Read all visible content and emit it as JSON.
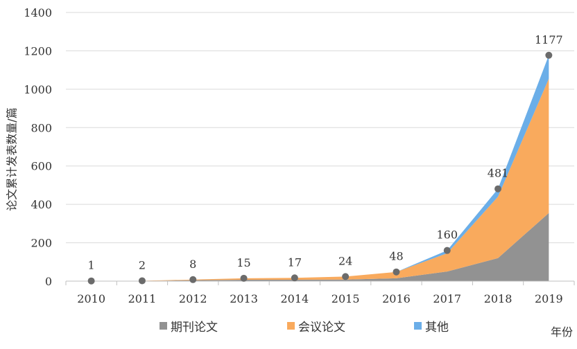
{
  "chart_data": {
    "type": "area",
    "stacked": true,
    "ylabel": "论文累计发表数量/篇",
    "xlabel": "年份",
    "categories": [
      "2010",
      "2011",
      "2012",
      "2013",
      "2014",
      "2015",
      "2016",
      "2017",
      "2018",
      "2019"
    ],
    "ylim": [
      0,
      1400
    ],
    "yticks": [
      0,
      200,
      400,
      600,
      800,
      1000,
      1200,
      1400
    ],
    "grid": true,
    "legend_position": "bottom",
    "series": [
      {
        "name": "期刊论文",
        "color": "#929292",
        "values": [
          0,
          1,
          5,
          7,
          7,
          8,
          15,
          50,
          120,
          355
        ]
      },
      {
        "name": "会议论文",
        "color": "#F9AA5D",
        "values": [
          1,
          1,
          3,
          8,
          10,
          16,
          33,
          95,
          320,
          700
        ]
      },
      {
        "name": "其他",
        "color": "#6BAEE8",
        "values": [
          0,
          0,
          0,
          0,
          0,
          0,
          0,
          15,
          41,
          122
        ]
      }
    ],
    "totals": [
      1,
      2,
      8,
      15,
      17,
      24,
      48,
      160,
      481,
      1177
    ],
    "total_labels": [
      "1",
      "2",
      "8",
      "15",
      "17",
      "24",
      "48",
      "160",
      "481",
      "1177"
    ],
    "total_marker_color": "#6b6b6b"
  }
}
